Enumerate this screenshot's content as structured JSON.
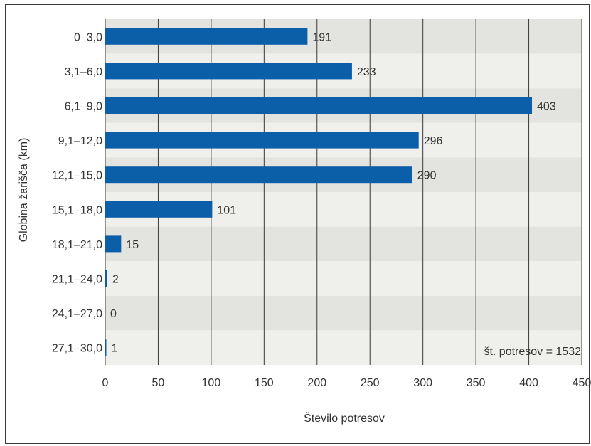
{
  "chart_data": {
    "type": "bar",
    "orientation": "horizontal",
    "categories": [
      "0–3,0",
      "3,1–6,0",
      "6,1–9,0",
      "9,1–12,0",
      "12,1–15,0",
      "15,1–18,0",
      "18,1–21,0",
      "21,1–24,0",
      "24,1–27,0",
      "27,1–30,0"
    ],
    "values": [
      191,
      233,
      403,
      296,
      290,
      101,
      15,
      2,
      0,
      1
    ],
    "value_labels": [
      "191",
      "233",
      "403",
      "296",
      "290",
      "101",
      "15",
      "2",
      "0",
      "1"
    ],
    "title": "",
    "xlabel": "Število potresov",
    "ylabel": "Globina žarišča (km)",
    "xlim": [
      0,
      450
    ],
    "xticks": [
      0,
      50,
      100,
      150,
      200,
      250,
      300,
      350,
      400,
      450
    ],
    "xtick_labels": [
      "0",
      "50",
      "100",
      "150",
      "200",
      "250",
      "300",
      "350",
      "400",
      "450"
    ],
    "grid": "vertical",
    "annotation": "št. potresov = 1532",
    "colors": {
      "bar": "#0b5ea8",
      "band_dark": "#e3e3e0",
      "band_light": "#efefec",
      "grid": "#3a3a3a"
    }
  }
}
